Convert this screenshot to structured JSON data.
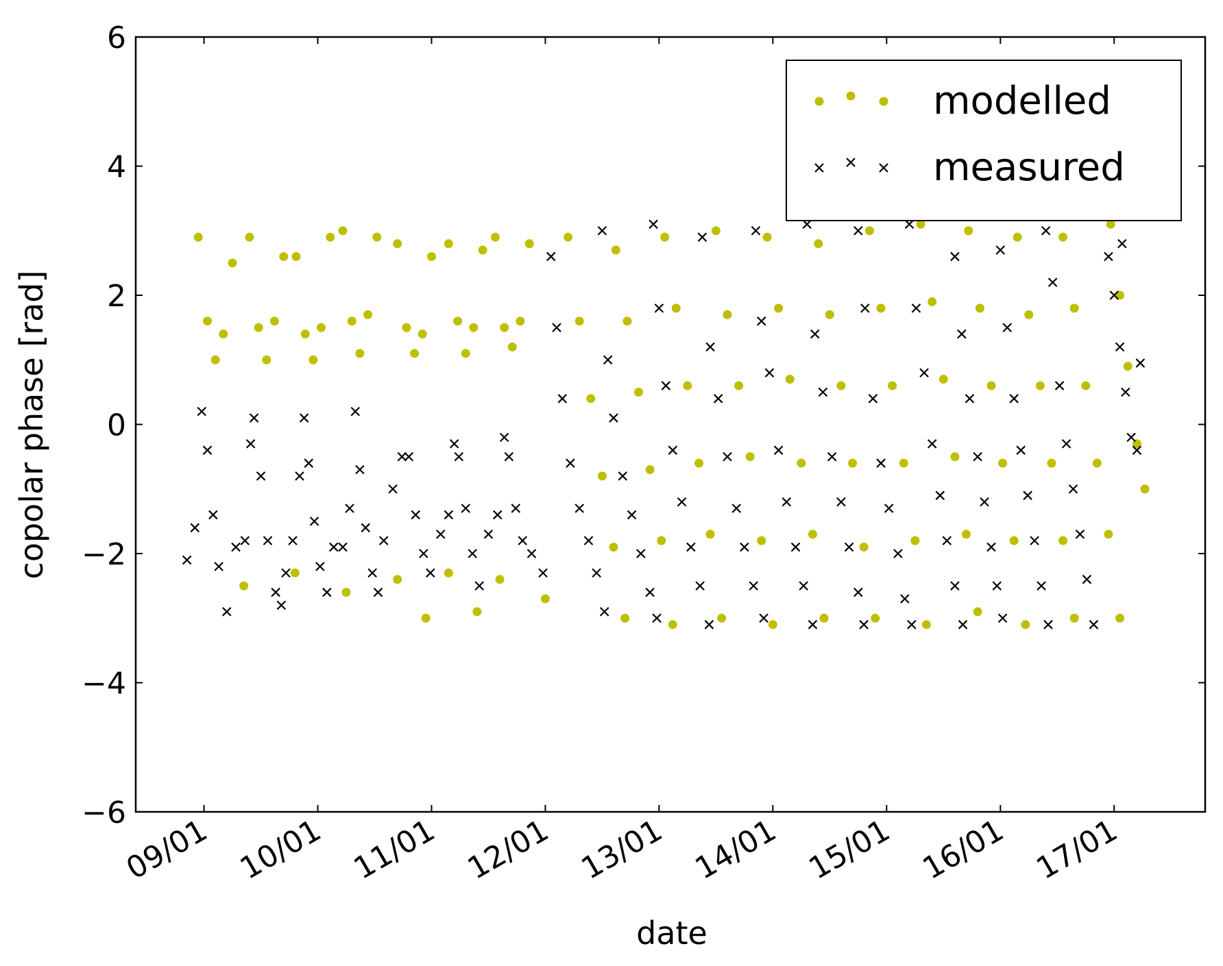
{
  "chart_data": {
    "type": "scatter",
    "xlabel": "date",
    "ylabel": "copolar phase [rad]",
    "xlim": [
      8.4,
      17.8
    ],
    "ylim": [
      -6,
      6
    ],
    "xticks": [
      {
        "value": 9,
        "label": "09/01"
      },
      {
        "value": 10,
        "label": "10/01"
      },
      {
        "value": 11,
        "label": "11/01"
      },
      {
        "value": 12,
        "label": "12/01"
      },
      {
        "value": 13,
        "label": "13/01"
      },
      {
        "value": 14,
        "label": "14/01"
      },
      {
        "value": 15,
        "label": "15/01"
      },
      {
        "value": 16,
        "label": "16/01"
      },
      {
        "value": 17,
        "label": "17/01"
      }
    ],
    "yticks": [
      {
        "value": -6,
        "label": "−6"
      },
      {
        "value": -4,
        "label": "−4"
      },
      {
        "value": -2,
        "label": "−2"
      },
      0,
      2,
      4,
      6
    ],
    "legend": "upper right",
    "series": [
      {
        "name": "modelled",
        "color": "#bfbf00",
        "marker": "o",
        "x": [
          8.95,
          9.03,
          9.1,
          9.17,
          9.25,
          9.4,
          9.48,
          9.55,
          9.62,
          9.7,
          9.81,
          9.89,
          9.96,
          10.03,
          10.11,
          10.22,
          10.3,
          10.37,
          10.44,
          10.52,
          10.7,
          10.78,
          10.85,
          10.92,
          11.0,
          11.15,
          11.23,
          11.3,
          11.37,
          11.45,
          11.56,
          11.64,
          11.71,
          11.78,
          11.86,
          9.35,
          9.8,
          10.25,
          10.7,
          11.15,
          11.6,
          12.0,
          10.95,
          11.4,
          12.2,
          12.3,
          12.4,
          12.5,
          12.6,
          12.7,
          12.62,
          12.72,
          12.82,
          12.92,
          13.02,
          13.12,
          13.05,
          13.15,
          13.25,
          13.35,
          13.45,
          13.55,
          13.5,
          13.6,
          13.7,
          13.8,
          13.9,
          14.0,
          13.95,
          14.05,
          14.15,
          14.25,
          14.35,
          14.45,
          14.4,
          14.5,
          14.6,
          14.7,
          14.8,
          14.9,
          14.85,
          14.95,
          15.05,
          15.15,
          15.25,
          15.35,
          15.3,
          15.4,
          15.5,
          15.6,
          15.7,
          15.8,
          15.72,
          15.82,
          15.92,
          16.02,
          16.12,
          16.22,
          16.15,
          16.25,
          16.35,
          16.45,
          16.55,
          16.65,
          16.55,
          16.65,
          16.75,
          16.85,
          16.95,
          17.05,
          16.97,
          17.05,
          17.12,
          17.2,
          17.27
        ],
        "values": [
          2.9,
          1.6,
          1.0,
          1.4,
          2.5,
          2.9,
          1.5,
          1.0,
          1.6,
          2.6,
          2.6,
          1.4,
          1.0,
          1.5,
          2.9,
          3.0,
          1.6,
          1.1,
          1.7,
          2.9,
          2.8,
          1.5,
          1.1,
          1.4,
          2.6,
          2.8,
          1.6,
          1.1,
          1.5,
          2.7,
          2.9,
          1.5,
          1.2,
          1.6,
          2.8,
          -2.5,
          -2.3,
          -2.6,
          -2.4,
          -2.3,
          -2.4,
          -2.7,
          -3.0,
          -2.9,
          2.9,
          1.6,
          0.4,
          -0.8,
          -1.9,
          -3.0,
          2.7,
          1.6,
          0.5,
          -0.7,
          -1.8,
          -3.1,
          2.9,
          1.8,
          0.6,
          -0.6,
          -1.7,
          -3.0,
          3.0,
          1.7,
          0.6,
          -0.5,
          -1.8,
          -3.1,
          2.9,
          1.8,
          0.7,
          -0.6,
          -1.7,
          -3.0,
          2.8,
          1.7,
          0.6,
          -0.6,
          -1.9,
          -3.0,
          3.0,
          1.8,
          0.6,
          -0.6,
          -1.8,
          -3.1,
          3.1,
          1.9,
          0.7,
          -0.5,
          -1.7,
          -2.9,
          3.0,
          1.8,
          0.6,
          -0.6,
          -1.8,
          -3.1,
          2.9,
          1.7,
          0.6,
          -0.6,
          -1.8,
          -3.0,
          2.9,
          1.8,
          0.6,
          -0.6,
          -1.7,
          -3.0,
          3.1,
          2.0,
          0.9,
          -0.3,
          -1.0
        ]
      },
      {
        "name": "measured",
        "color": "#000000",
        "marker": "x",
        "x": [
          8.85,
          8.92,
          8.98,
          9.03,
          9.08,
          9.13,
          9.2,
          9.28,
          9.36,
          9.41,
          9.44,
          9.5,
          9.56,
          9.63,
          9.68,
          9.72,
          9.78,
          9.84,
          9.88,
          9.92,
          9.97,
          10.02,
          10.08,
          10.14,
          10.22,
          10.28,
          10.33,
          10.37,
          10.42,
          10.48,
          10.53,
          10.58,
          10.66,
          10.74,
          10.8,
          10.86,
          10.93,
          10.99,
          11.08,
          11.15,
          11.2,
          11.24,
          11.3,
          11.36,
          11.42,
          11.5,
          11.58,
          11.64,
          11.68,
          11.74,
          11.8,
          11.88,
          11.98,
          12.05,
          12.1,
          12.15,
          12.22,
          12.3,
          12.38,
          12.45,
          12.52,
          12.5,
          12.55,
          12.6,
          12.68,
          12.76,
          12.84,
          12.92,
          12.98,
          12.95,
          13.0,
          13.06,
          13.12,
          13.2,
          13.28,
          13.36,
          13.44,
          13.38,
          13.45,
          13.52,
          13.6,
          13.68,
          13.75,
          13.83,
          13.92,
          13.85,
          13.9,
          13.97,
          14.05,
          14.12,
          14.2,
          14.27,
          14.35,
          14.3,
          14.37,
          14.44,
          14.52,
          14.6,
          14.67,
          14.75,
          14.8,
          14.75,
          14.81,
          14.88,
          14.95,
          15.02,
          15.1,
          15.16,
          15.22,
          15.2,
          15.26,
          15.33,
          15.4,
          15.47,
          15.53,
          15.6,
          15.67,
          15.6,
          15.66,
          15.73,
          15.8,
          15.86,
          15.92,
          15.97,
          16.02,
          16.0,
          16.06,
          16.12,
          16.18,
          16.24,
          16.3,
          16.36,
          16.42,
          16.4,
          16.46,
          16.52,
          16.58,
          16.64,
          16.7,
          16.76,
          16.82,
          16.95,
          17.0,
          17.05,
          17.1,
          17.15,
          17.2,
          17.07,
          17.23
        ],
        "values": [
          -2.1,
          -1.6,
          0.2,
          -0.4,
          -1.4,
          -2.2,
          -2.9,
          -1.9,
          -1.8,
          -0.3,
          0.1,
          -0.8,
          -1.8,
          -2.6,
          -2.8,
          -2.3,
          -1.8,
          -0.8,
          0.1,
          -0.6,
          -1.5,
          -2.2,
          -2.6,
          -1.9,
          -1.9,
          -1.3,
          0.2,
          -0.7,
          -1.6,
          -2.3,
          -2.6,
          -1.8,
          -1.0,
          -0.5,
          -0.5,
          -1.4,
          -2.0,
          -2.3,
          -1.7,
          -1.4,
          -0.3,
          -0.5,
          -1.3,
          -2.0,
          -2.5,
          -1.7,
          -1.4,
          -0.2,
          -0.5,
          -1.3,
          -1.8,
          -2.0,
          -2.3,
          2.6,
          1.5,
          0.4,
          -0.6,
          -1.3,
          -1.8,
          -2.3,
          -2.9,
          3.0,
          1.0,
          0.1,
          -0.8,
          -1.4,
          -2.0,
          -2.6,
          -3.0,
          3.1,
          1.8,
          0.6,
          -0.4,
          -1.2,
          -1.9,
          -2.5,
          -3.1,
          2.9,
          1.2,
          0.4,
          -0.5,
          -1.3,
          -1.9,
          -2.5,
          -3.0,
          3.0,
          1.6,
          0.8,
          -0.4,
          -1.2,
          -1.9,
          -2.5,
          -3.1,
          3.1,
          1.4,
          0.5,
          -0.5,
          -1.2,
          -1.9,
          -2.6,
          -3.1,
          3.0,
          1.8,
          0.4,
          -0.6,
          -1.3,
          -2.0,
          -2.7,
          -3.1,
          3.1,
          1.8,
          0.8,
          -0.3,
          -1.1,
          -1.8,
          -2.5,
          -3.1,
          2.6,
          1.4,
          0.4,
          -0.5,
          -1.2,
          -1.9,
          -2.5,
          -3.0,
          2.7,
          1.5,
          0.4,
          -0.4,
          -1.1,
          -1.8,
          -2.5,
          -3.1,
          3.0,
          2.2,
          0.6,
          -0.3,
          -1.0,
          -1.7,
          -2.4,
          -3.1,
          2.6,
          2.0,
          1.2,
          0.5,
          -0.2,
          -0.4,
          2.8,
          0.95
        ]
      }
    ]
  }
}
